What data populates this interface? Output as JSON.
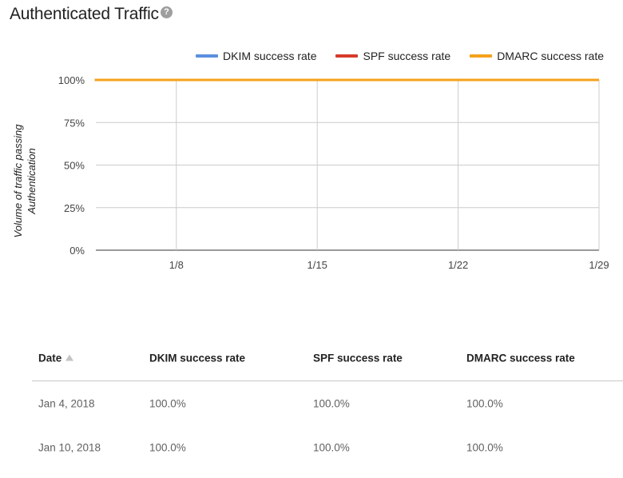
{
  "header": {
    "title": "Authenticated Traffic",
    "help_icon": "help-circle-icon",
    "help_glyph": "?"
  },
  "chart_data": {
    "type": "line",
    "ylabel_lines": [
      "Volume of traffic passing",
      "Authentication"
    ],
    "y_ticks": [
      "100%",
      "75%",
      "50%",
      "25%",
      "0%"
    ],
    "ylim": [
      0,
      100
    ],
    "x_ticks": [
      "1/8",
      "1/15",
      "1/22",
      "1/29"
    ],
    "x_tick_days": [
      8,
      15,
      22,
      29
    ],
    "xlim_days": [
      4,
      29
    ],
    "grid": true,
    "legend_position": "top-right",
    "series": [
      {
        "name": "DKIM success rate",
        "color": "#5b8fdf",
        "x_days": [
          4,
          10
        ],
        "values": [
          100,
          100
        ]
      },
      {
        "name": "SPF success rate",
        "color": "#d63a2b",
        "x_days": [
          4,
          10
        ],
        "values": [
          100,
          100
        ]
      },
      {
        "name": "DMARC success rate",
        "color": "#f4a21b",
        "x_days": [
          4,
          10
        ],
        "values": [
          100,
          100
        ]
      }
    ]
  },
  "table": {
    "columns": [
      "Date",
      "DKIM success rate",
      "SPF success rate",
      "DMARC success rate"
    ],
    "sort_icon": "sort-ascending-icon",
    "rows": [
      [
        "Jan 4, 2018",
        "100.0%",
        "100.0%",
        "100.0%"
      ],
      [
        "Jan 10, 2018",
        "100.0%",
        "100.0%",
        "100.0%"
      ]
    ]
  }
}
